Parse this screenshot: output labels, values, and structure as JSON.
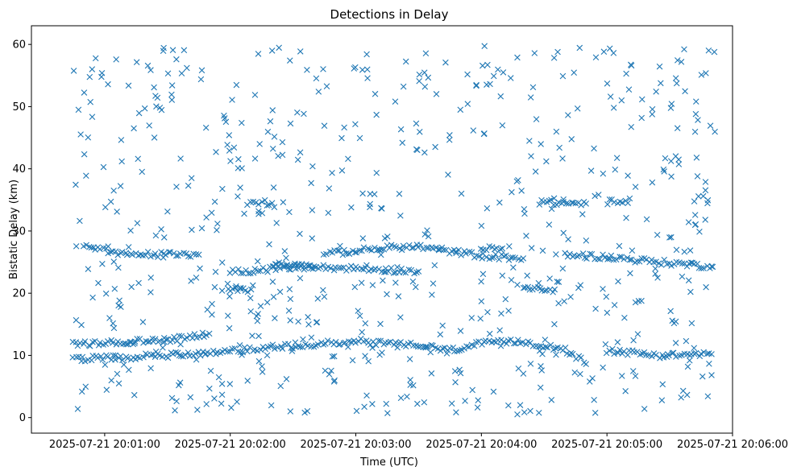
{
  "chart_data": {
    "type": "scatter",
    "title": "Detections in Delay",
    "xlabel": "Time (UTC)",
    "ylabel": "Bistatic Delay (km)",
    "marker": "x",
    "color": "#1f77b4",
    "grid": false,
    "xlim": [
      "2025-07-21 20:00:25",
      "2025-07-21 20:06:00"
    ],
    "ylim": [
      -2.5,
      63
    ],
    "x_ticks": [
      {
        "t": "2025-07-21 20:01:00",
        "label": "2025-07-21 20:01:00"
      },
      {
        "t": "2025-07-21 20:02:00",
        "label": "2025-07-21 20:02:00"
      },
      {
        "t": "2025-07-21 20:03:00",
        "label": "2025-07-21 20:03:00"
      },
      {
        "t": "2025-07-21 20:04:00",
        "label": "2025-07-21 20:04:00"
      },
      {
        "t": "2025-07-21 20:05:00",
        "label": "2025-07-21 20:05:00"
      },
      {
        "t": "2025-07-21 20:06:00",
        "label": "2025-07-21 20:06:00"
      }
    ],
    "y_ticks": [
      0,
      10,
      20,
      30,
      40,
      50,
      60
    ],
    "tracks": [
      {
        "name": "",
        "points": [
          [
            "20:00:45",
            9.4
          ],
          [
            "20:01:10",
            9.7
          ],
          [
            "20:01:35",
            10.1
          ],
          [
            "20:02:00",
            10.8
          ],
          [
            "20:02:30",
            11.5
          ],
          [
            "20:03:00",
            12.3
          ],
          [
            "20:03:30",
            11.6
          ],
          [
            "20:03:45",
            10.8
          ],
          [
            "20:04:00",
            11.9
          ],
          [
            "20:04:20",
            12.2
          ],
          [
            "20:04:40",
            11.0
          ],
          [
            "20:04:50",
            8.6
          ]
        ]
      },
      {
        "name": "",
        "points": [
          [
            "20:00:45",
            11.8
          ],
          [
            "20:01:10",
            12.1
          ],
          [
            "20:01:30",
            12.5
          ],
          [
            "20:01:50",
            13.5
          ]
        ]
      },
      {
        "name": "",
        "points": [
          [
            "20:00:50",
            27.9
          ],
          [
            "20:01:05",
            26.3
          ],
          [
            "20:01:45",
            26.2
          ]
        ]
      },
      {
        "name": "",
        "points": [
          [
            "20:02:00",
            20.8
          ],
          [
            "20:02:10",
            20.6
          ]
        ]
      },
      {
        "name": "",
        "points": [
          [
            "20:02:00",
            23.4
          ],
          [
            "20:02:35",
            24.2
          ],
          [
            "20:03:00",
            24.0
          ],
          [
            "20:03:30",
            23.5
          ]
        ]
      },
      {
        "name": "",
        "points": [
          [
            "20:02:45",
            26.3
          ],
          [
            "20:03:15",
            27.3
          ],
          [
            "20:03:30",
            27.5
          ],
          [
            "20:04:00",
            26.0
          ],
          [
            "20:04:20",
            25.6
          ]
        ]
      },
      {
        "name": "",
        "points": [
          [
            "20:04:00",
            27.1
          ],
          [
            "20:04:10",
            27.2
          ]
        ]
      },
      {
        "name": "",
        "points": [
          [
            "20:04:20",
            20.7
          ],
          [
            "20:04:35",
            20.6
          ]
        ]
      },
      {
        "name": "",
        "points": [
          [
            "20:04:30",
            34.6
          ],
          [
            "20:04:50",
            34.4
          ]
        ]
      },
      {
        "name": "",
        "points": [
          [
            "20:05:00",
            34.7
          ],
          [
            "20:05:10",
            34.5
          ]
        ]
      },
      {
        "name": "",
        "points": [
          [
            "20:04:40",
            26.2
          ],
          [
            "20:05:00",
            25.8
          ],
          [
            "20:05:25",
            25.0
          ],
          [
            "20:05:50",
            24.3
          ]
        ]
      },
      {
        "name": "",
        "points": [
          [
            "20:05:00",
            10.8
          ],
          [
            "20:05:25",
            10.0
          ],
          [
            "20:05:50",
            10.2
          ]
        ]
      },
      {
        "name": "",
        "points": [
          [
            "20:02:10",
            34.6
          ],
          [
            "20:02:20",
            34.5
          ]
        ]
      },
      {
        "name": "",
        "points": [
          [
            "20:02:20",
            24.6
          ],
          [
            "20:02:40",
            24.3
          ]
        ]
      }
    ],
    "scatter_density": {
      "note": "",
      "x_range": [
        "2025-07-21 20:00:45",
        "2025-07-21 20:05:52"
      ],
      "y_range": [
        0.5,
        60
      ],
      "count": 650
    }
  }
}
